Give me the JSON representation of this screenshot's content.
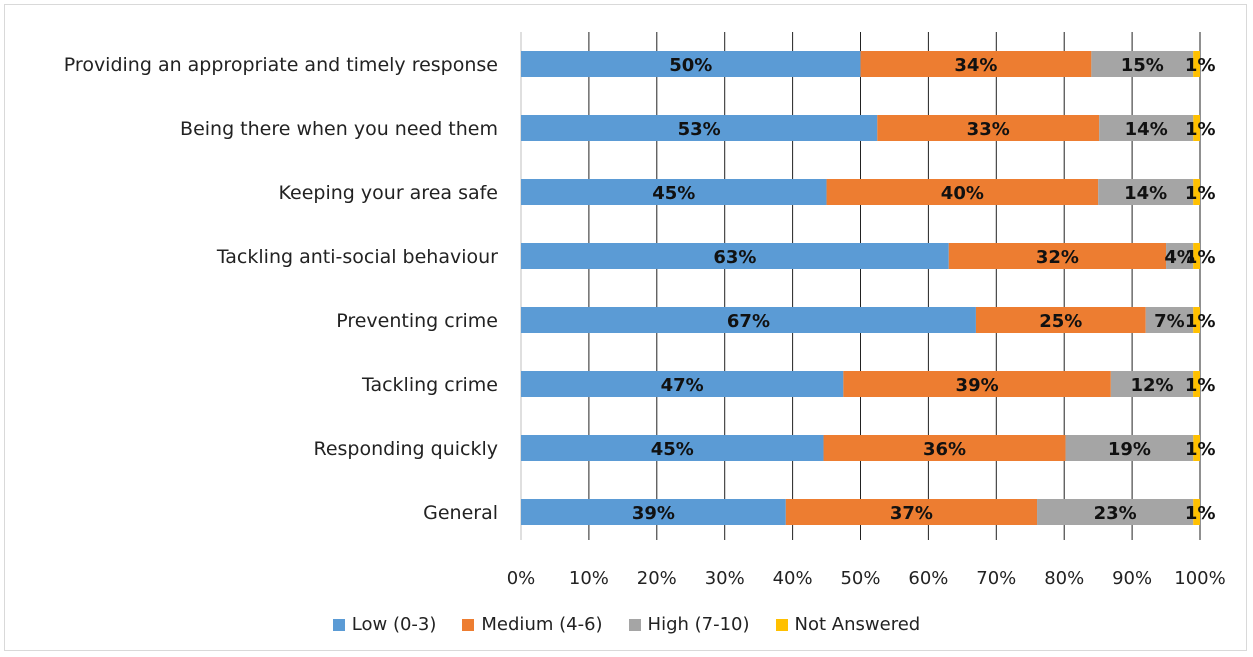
{
  "chart_data": {
    "type": "bar",
    "orientation": "horizontal",
    "stacked": "percent",
    "categories": [
      "Providing an appropriate and timely response",
      "Being there when you need them",
      "Keeping your area safe",
      "Tackling anti-social behaviour",
      "Preventing crime",
      "Tackling crime",
      "Responding quickly",
      "General"
    ],
    "series": [
      {
        "name": "Low (0-3)",
        "color": "#5b9bd5",
        "values": [
          50,
          53,
          45,
          63,
          67,
          47,
          45,
          39
        ],
        "labels": [
          "50%",
          "53%",
          "45%",
          "63%",
          "67%",
          "47%",
          "45%",
          "39%"
        ]
      },
      {
        "name": "Medium (4-6)",
        "color": "#ed7d31",
        "values": [
          34,
          33,
          40,
          32,
          25,
          39,
          36,
          37
        ],
        "labels": [
          "34%",
          "33%",
          "40%",
          "32%",
          "25%",
          "39%",
          "36%",
          "37%"
        ]
      },
      {
        "name": "High (7-10)",
        "color": "#a5a5a5",
        "values": [
          15,
          14,
          14,
          4,
          7,
          12,
          19,
          23
        ],
        "labels": [
          "15%",
          "14%",
          "14%",
          "4%",
          "7%",
          "12%",
          "19%",
          "23%"
        ]
      },
      {
        "name": "Not Answered",
        "color": "#ffc000",
        "values": [
          1,
          1,
          1,
          1,
          1,
          1,
          1,
          1
        ],
        "labels": [
          "1%",
          "1%",
          "1%",
          "1%",
          "1%",
          "1%",
          "1%",
          "1%"
        ]
      }
    ],
    "xlim": [
      0,
      100
    ],
    "x_ticks": [
      "0%",
      "10%",
      "20%",
      "30%",
      "40%",
      "50%",
      "60%",
      "70%",
      "80%",
      "90%",
      "100%"
    ],
    "grid": "vertical",
    "legend_position": "bottom",
    "title": "",
    "xlabel": "",
    "ylabel": ""
  }
}
